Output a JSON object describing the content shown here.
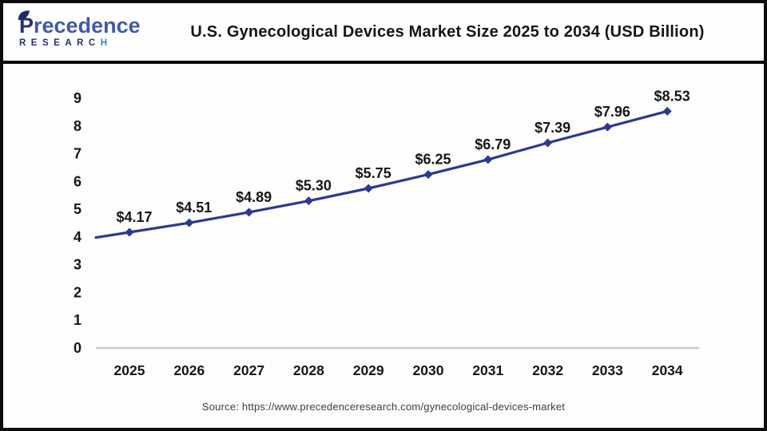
{
  "header": {
    "logo": {
      "brand_part1": "P",
      "brand_part2": "recedence",
      "sub_main": "RESEARC",
      "sub_accent": "H"
    },
    "title": "U.S. Gynecological Devices Market Size 2025 to 2034 (USD Billion)"
  },
  "chart_data": {
    "type": "line",
    "title": "U.S. Gynecological Devices Market Size 2025 to 2034 (USD Billion)",
    "categories": [
      "2025",
      "2026",
      "2027",
      "2028",
      "2029",
      "2030",
      "2031",
      "2032",
      "2033",
      "2034"
    ],
    "values": [
      4.17,
      4.51,
      4.89,
      5.3,
      5.75,
      6.25,
      6.79,
      7.39,
      7.96,
      8.53
    ],
    "point_labels": [
      "$4.17",
      "$4.51",
      "$4.89",
      "$5.30",
      "$5.75",
      "$6.25",
      "$6.79",
      "$7.39",
      "$7.96",
      "$8.53"
    ],
    "xlabel": "",
    "ylabel": "",
    "ylim": [
      0,
      9
    ],
    "yticks": [
      0,
      1,
      2,
      3,
      4,
      5,
      6,
      7,
      8,
      9
    ],
    "grid": false,
    "legend": "none",
    "line_color": "#2b3990",
    "marker_color": "#2b3990",
    "data_label_color": "#161616",
    "tick_label_color": "#161616",
    "axis_line_color": "#c7c7c7"
  },
  "footer": {
    "source": "Source: https://www.precedenceresearch.com/gynecological-devices-market"
  }
}
